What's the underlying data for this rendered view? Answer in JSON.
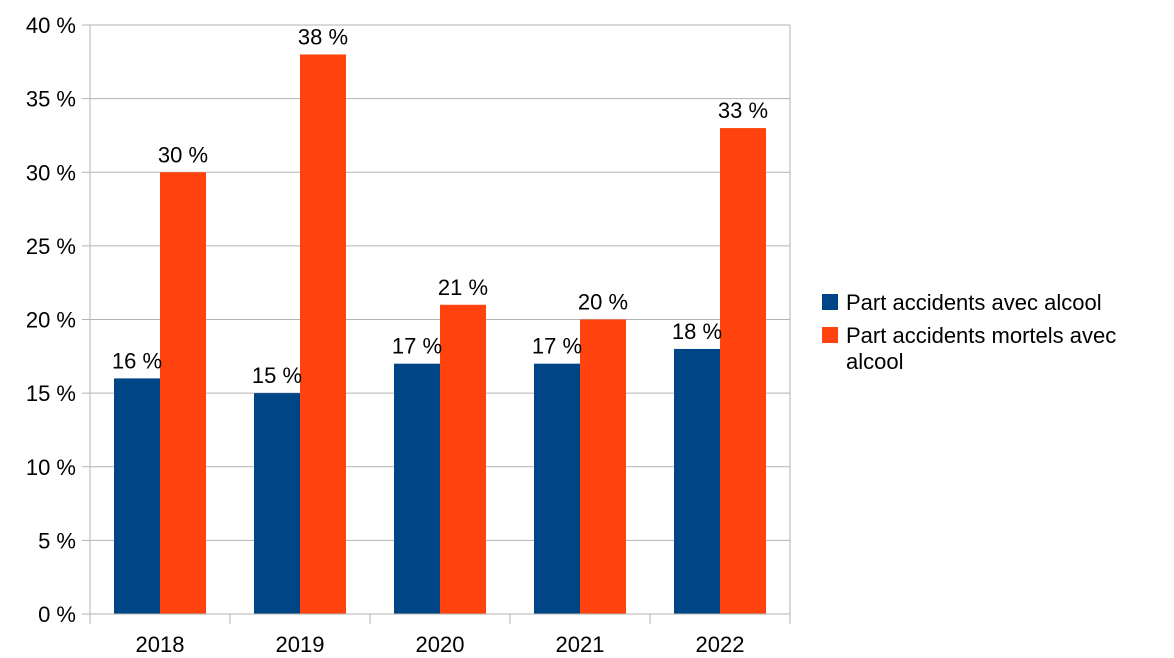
{
  "chart_data": {
    "type": "bar",
    "title": "",
    "xlabel": "",
    "ylabel": "",
    "categories": [
      "2018",
      "2019",
      "2020",
      "2021",
      "2022"
    ],
    "series": [
      {
        "name": "Part accidents avec alcool",
        "color": "#004586",
        "values": [
          16,
          15,
          17,
          17,
          18
        ],
        "labels": [
          "16 %",
          "15 %",
          "17 %",
          "17 %",
          "18 %"
        ]
      },
      {
        "name": "Part accidents mortels avec alcool",
        "color": "#ff420e",
        "values": [
          30,
          38,
          21,
          20,
          33
        ],
        "labels": [
          "30 %",
          "38 %",
          "21 %",
          "20 %",
          "33 %"
        ]
      }
    ],
    "ylim": [
      0,
      40
    ],
    "yticks": [
      0,
      5,
      10,
      15,
      20,
      25,
      30,
      35,
      40
    ],
    "ytick_labels": [
      "0 %",
      "5 %",
      "10 %",
      "15 %",
      "20 %",
      "25 %",
      "30 %",
      "35 %",
      "40 %"
    ],
    "grid": true,
    "legend_position": "right"
  }
}
